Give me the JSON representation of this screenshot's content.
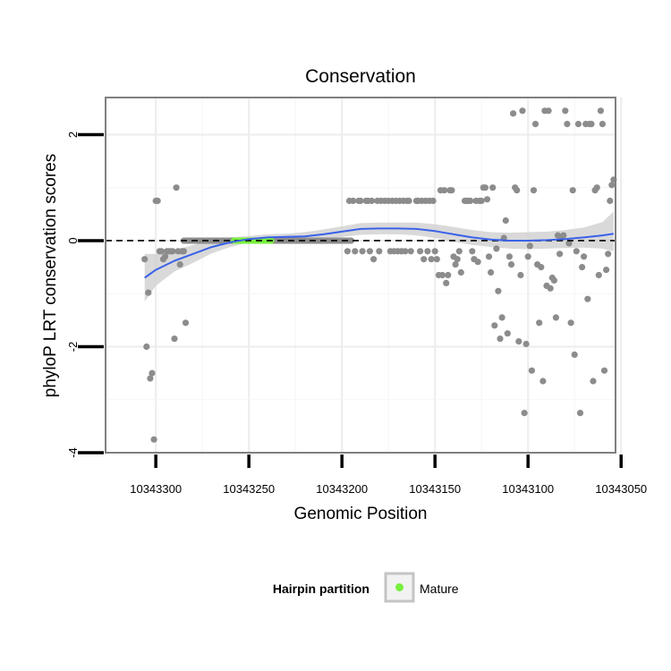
{
  "chart_data": {
    "type": "scatter",
    "title": "Conservation",
    "xlabel": "Genomic Position",
    "ylabel": "phyloP LRT conservation scores",
    "x_reversed": true,
    "xlim": [
      10343327,
      10343053
    ],
    "ylim": [
      -4.0,
      2.7
    ],
    "x_ticks": [
      10343300,
      10343250,
      10343200,
      10343150,
      10343100,
      10343050
    ],
    "x_tick_labels": [
      "10343300",
      "10343250",
      "10343200",
      "10343150",
      "10343100",
      "10343050"
    ],
    "y_ticks": [
      -4,
      -2,
      0,
      2
    ],
    "y_tick_labels": [
      "-4",
      "-2",
      "0",
      "2"
    ],
    "reference_line": {
      "y": 0,
      "style": "dashed"
    },
    "colors": {
      "points": "#8c8c8c",
      "smooth": "#3a62e8",
      "ribbon": "#d2d2d2",
      "hairpin_band": "#8c8c8c",
      "mature": "#78f03c",
      "grid": "#ececec",
      "frame": "#7f7f7f"
    },
    "legend": {
      "title": "Hairpin partition",
      "entries": [
        {
          "label": "Mature",
          "color": "#78f03c"
        }
      ],
      "position": "bottom"
    },
    "hairpin_region": {
      "x_start": 10343285,
      "x_end": 10343195,
      "y": 0
    },
    "mature_region": {
      "x_start": 10343258,
      "x_end": 10343238,
      "y": 0
    },
    "points": [
      [
        10343306,
        -0.35
      ],
      [
        10343305,
        -2.0
      ],
      [
        10343304,
        -0.98
      ],
      [
        10343303,
        -2.6
      ],
      [
        10343302,
        -2.5
      ],
      [
        10343301,
        -3.75
      ],
      [
        10343300,
        0.75
      ],
      [
        10343299,
        0.75
      ],
      [
        10343298,
        -0.2
      ],
      [
        10343297,
        -0.2
      ],
      [
        10343296,
        -0.35
      ],
      [
        10343295,
        -0.3
      ],
      [
        10343294,
        -0.2
      ],
      [
        10343293,
        -0.2
      ],
      [
        10343292,
        -0.2
      ],
      [
        10343291,
        -0.2
      ],
      [
        10343290,
        -1.85
      ],
      [
        10343289,
        1.0
      ],
      [
        10343288,
        -0.2
      ],
      [
        10343287,
        -0.45
      ],
      [
        10343286,
        -0.2
      ],
      [
        10343285,
        -0.2
      ],
      [
        10343284,
        -1.55
      ],
      [
        10343197,
        -0.2
      ],
      [
        10343196,
        0.75
      ],
      [
        10343194,
        0.75
      ],
      [
        10343193,
        -0.2
      ],
      [
        10343191,
        0.75
      ],
      [
        10343190,
        0.75
      ],
      [
        10343189,
        -0.2
      ],
      [
        10343187,
        0.75
      ],
      [
        10343186,
        0.75
      ],
      [
        10343185,
        -0.2
      ],
      [
        10343184,
        0.75
      ],
      [
        10343183,
        -0.35
      ],
      [
        10343181,
        0.75
      ],
      [
        10343180,
        -0.2
      ],
      [
        10343179,
        0.75
      ],
      [
        10343177,
        0.75
      ],
      [
        10343175,
        0.75
      ],
      [
        10343174,
        -0.2
      ],
      [
        10343173,
        0.75
      ],
      [
        10343172,
        -0.2
      ],
      [
        10343171,
        0.75
      ],
      [
        10343170,
        -0.2
      ],
      [
        10343169,
        0.75
      ],
      [
        10343168,
        -0.2
      ],
      [
        10343167,
        0.75
      ],
      [
        10343166,
        -0.2
      ],
      [
        10343165,
        0.75
      ],
      [
        10343164,
        0.75
      ],
      [
        10343163,
        -0.2
      ],
      [
        10343160,
        0.75
      ],
      [
        10343159,
        0.75
      ],
      [
        10343158,
        -0.2
      ],
      [
        10343157,
        0.75
      ],
      [
        10343156,
        -0.35
      ],
      [
        10343155,
        0.75
      ],
      [
        10343154,
        -0.2
      ],
      [
        10343153,
        0.75
      ],
      [
        10343152,
        -0.35
      ],
      [
        10343151,
        0.75
      ],
      [
        10343150,
        -0.2
      ],
      [
        10343149,
        -0.35
      ],
      [
        10343148,
        -0.65
      ],
      [
        10343147,
        0.95
      ],
      [
        10343146,
        -0.65
      ],
      [
        10343145,
        0.95
      ],
      [
        10343144,
        -0.8
      ],
      [
        10343143,
        -0.65
      ],
      [
        10343142,
        0.95
      ],
      [
        10343141,
        0.95
      ],
      [
        10343140,
        -0.3
      ],
      [
        10343139,
        -0.45
      ],
      [
        10343138,
        -0.35
      ],
      [
        10343137,
        -0.2
      ],
      [
        10343136,
        -0.6
      ],
      [
        10343134,
        0.75
      ],
      [
        10343133,
        0.75
      ],
      [
        10343132,
        0.75
      ],
      [
        10343131,
        0.75
      ],
      [
        10343130,
        -0.2
      ],
      [
        10343129,
        -0.35
      ],
      [
        10343128,
        0.75
      ],
      [
        10343127,
        -0.4
      ],
      [
        10343126,
        0.75
      ],
      [
        10343125,
        0.75
      ],
      [
        10343124,
        1.0
      ],
      [
        10343123,
        1.0
      ],
      [
        10343122,
        0.78
      ],
      [
        10343121,
        -0.3
      ],
      [
        10343120,
        -0.6
      ],
      [
        10343119,
        1.0
      ],
      [
        10343118,
        -1.6
      ],
      [
        10343117,
        -0.15
      ],
      [
        10343116,
        -0.95
      ],
      [
        10343115,
        -1.85
      ],
      [
        10343114,
        -1.45
      ],
      [
        10343113,
        0.05
      ],
      [
        10343112,
        0.38
      ],
      [
        10343111,
        -1.75
      ],
      [
        10343110,
        -0.3
      ],
      [
        10343109,
        -0.45
      ],
      [
        10343108,
        2.4
      ],
      [
        10343107,
        1.0
      ],
      [
        10343106,
        0.95
      ],
      [
        10343105,
        -1.9
      ],
      [
        10343104,
        -0.65
      ],
      [
        10343103,
        2.45
      ],
      [
        10343102,
        -3.25
      ],
      [
        10343101,
        -1.95
      ],
      [
        10343100,
        -0.3
      ],
      [
        10343099,
        -0.1
      ],
      [
        10343098,
        -2.45
      ],
      [
        10343097,
        0.95
      ],
      [
        10343096,
        2.2
      ],
      [
        10343095,
        -0.45
      ],
      [
        10343094,
        -1.55
      ],
      [
        10343093,
        -0.5
      ],
      [
        10343092,
        -2.65
      ],
      [
        10343091,
        2.45
      ],
      [
        10343090,
        -0.85
      ],
      [
        10343089,
        2.45
      ],
      [
        10343088,
        -0.9
      ],
      [
        10343087,
        -0.7
      ],
      [
        10343086,
        -0.75
      ],
      [
        10343085,
        -1.45
      ],
      [
        10343084,
        0.1
      ],
      [
        10343083,
        -0.25
      ],
      [
        10343082,
        0.05
      ],
      [
        10343081,
        0.1
      ],
      [
        10343080,
        2.45
      ],
      [
        10343079,
        2.2
      ],
      [
        10343078,
        -0.05
      ],
      [
        10343077,
        -1.55
      ],
      [
        10343076,
        0.95
      ],
      [
        10343075,
        -2.15
      ],
      [
        10343074,
        -0.2
      ],
      [
        10343073,
        2.2
      ],
      [
        10343072,
        -3.25
      ],
      [
        10343071,
        -0.5
      ],
      [
        10343070,
        -0.3
      ],
      [
        10343069,
        2.2
      ],
      [
        10343068,
        -1.1
      ],
      [
        10343067,
        2.2
      ],
      [
        10343066,
        2.2
      ],
      [
        10343065,
        -2.65
      ],
      [
        10343064,
        0.95
      ],
      [
        10343063,
        1.0
      ],
      [
        10343062,
        -0.65
      ],
      [
        10343061,
        2.45
      ],
      [
        10343060,
        2.2
      ],
      [
        10343059,
        -2.45
      ],
      [
        10343058,
        -0.55
      ],
      [
        10343057,
        -0.25
      ],
      [
        10343056,
        0.75
      ],
      [
        10343055,
        1.05
      ],
      [
        10343054,
        1.15
      ]
    ],
    "smooth": {
      "x": [
        10343306,
        10343300,
        10343290,
        10343280,
        10343270,
        10343260,
        10343250,
        10343240,
        10343230,
        10343220,
        10343210,
        10343200,
        10343190,
        10343180,
        10343170,
        10343160,
        10343150,
        10343140,
        10343130,
        10343120,
        10343110,
        10343100,
        10343090,
        10343080,
        10343070,
        10343060,
        10343054
      ],
      "y": [
        -0.7,
        -0.55,
        -0.38,
        -0.25,
        -0.12,
        -0.03,
        0.03,
        0.06,
        0.07,
        0.08,
        0.12,
        0.17,
        0.22,
        0.23,
        0.23,
        0.22,
        0.18,
        0.12,
        0.06,
        0.02,
        0.0,
        0.0,
        0.01,
        0.03,
        0.06,
        0.1,
        0.13
      ],
      "lower": [
        -1.15,
        -0.85,
        -0.58,
        -0.42,
        -0.24,
        -0.12,
        -0.03,
        0.0,
        0.01,
        0.0,
        0.03,
        0.07,
        0.11,
        0.12,
        0.12,
        0.1,
        0.05,
        -0.02,
        -0.08,
        -0.12,
        -0.15,
        -0.16,
        -0.15,
        -0.14,
        -0.13,
        -0.15,
        -0.2
      ],
      "upper": [
        -0.25,
        -0.25,
        -0.18,
        -0.08,
        0.0,
        0.06,
        0.09,
        0.12,
        0.13,
        0.16,
        0.21,
        0.27,
        0.33,
        0.34,
        0.34,
        0.34,
        0.31,
        0.26,
        0.2,
        0.16,
        0.15,
        0.16,
        0.17,
        0.2,
        0.25,
        0.35,
        0.55
      ]
    }
  }
}
